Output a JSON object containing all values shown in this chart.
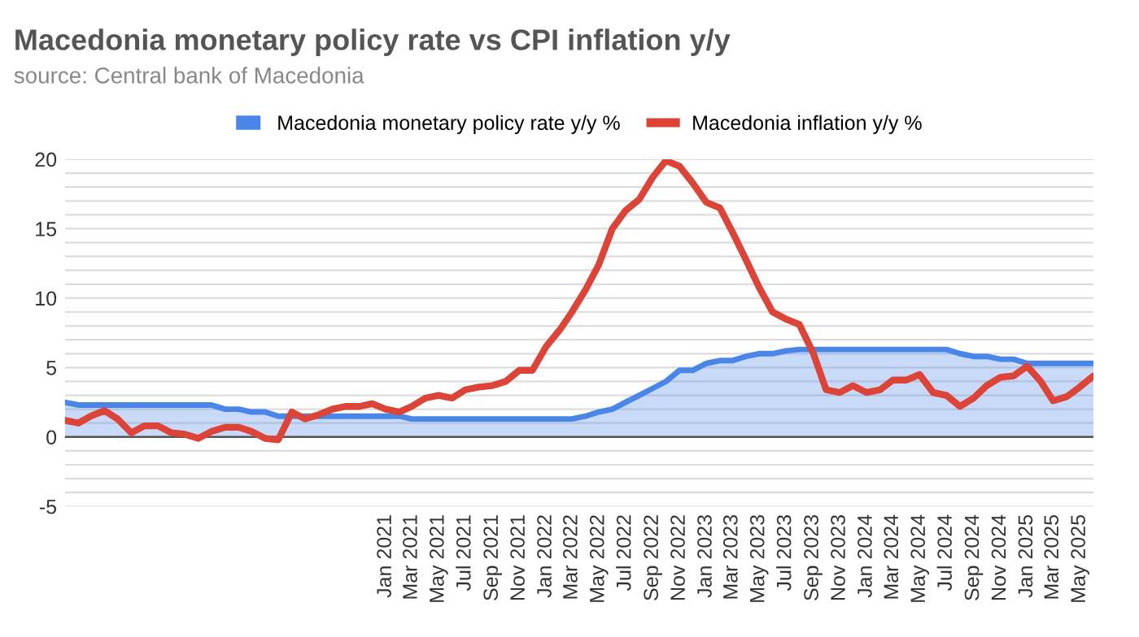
{
  "chart_data": {
    "type": "line",
    "title": "Macedonia monetary policy rate vs CPI inflation y/y",
    "subtitle": "source: Central bank of Macedonia",
    "x": [
      "2019-01",
      "2019-02",
      "2019-03",
      "2019-04",
      "2019-05",
      "2019-06",
      "2019-07",
      "2019-08",
      "2019-09",
      "2019-10",
      "2019-11",
      "2019-12",
      "2020-01",
      "2020-02",
      "2020-03",
      "2020-04",
      "2020-05",
      "2020-06",
      "2020-07",
      "2020-08",
      "2020-09",
      "2020-10",
      "2020-11",
      "2020-12",
      "2021-01",
      "2021-02",
      "2021-03",
      "2021-04",
      "2021-05",
      "2021-06",
      "2021-07",
      "2021-08",
      "2021-09",
      "2021-10",
      "2021-11",
      "2021-12",
      "2022-01",
      "2022-02",
      "2022-03",
      "2022-04",
      "2022-05",
      "2022-06",
      "2022-07",
      "2022-08",
      "2022-09",
      "2022-10",
      "2022-11",
      "2022-12",
      "2023-01",
      "2023-02",
      "2023-03",
      "2023-04",
      "2023-05",
      "2023-06",
      "2023-07",
      "2023-08",
      "2023-09",
      "2023-10",
      "2023-11",
      "2023-12",
      "2024-01",
      "2024-02",
      "2024-03",
      "2024-04",
      "2024-05",
      "2024-06",
      "2024-07",
      "2024-08",
      "2024-09",
      "2024-10",
      "2024-11",
      "2024-12",
      "2025-01",
      "2025-02",
      "2025-03",
      "2025-04",
      "2025-05",
      "2025-06"
    ],
    "series": [
      {
        "name": "Macedonia monetary policy rate y/y %",
        "type": "area",
        "color": "#4a86e8",
        "values": [
          2.5,
          2.3,
          2.3,
          2.3,
          2.3,
          2.3,
          2.3,
          2.3,
          2.3,
          2.3,
          2.3,
          2.3,
          2.0,
          2.0,
          1.8,
          1.8,
          1.5,
          1.5,
          1.5,
          1.5,
          1.5,
          1.5,
          1.5,
          1.5,
          1.5,
          1.5,
          1.3,
          1.3,
          1.3,
          1.3,
          1.3,
          1.3,
          1.3,
          1.3,
          1.3,
          1.3,
          1.3,
          1.3,
          1.3,
          1.5,
          1.8,
          2.0,
          2.5,
          3.0,
          3.5,
          4.0,
          4.8,
          4.8,
          5.3,
          5.5,
          5.5,
          5.8,
          6.0,
          6.0,
          6.2,
          6.3,
          6.3,
          6.3,
          6.3,
          6.3,
          6.3,
          6.3,
          6.3,
          6.3,
          6.3,
          6.3,
          6.3,
          6.0,
          5.8,
          5.8,
          5.6,
          5.6,
          5.3,
          5.3,
          5.3,
          5.3,
          5.3,
          5.3
        ]
      },
      {
        "name": "Macedonia inflation y/y %",
        "color": "#db4437",
        "values": [
          1.2,
          1.0,
          1.5,
          1.9,
          1.3,
          0.3,
          0.8,
          0.8,
          0.3,
          0.2,
          -0.1,
          0.4,
          0.7,
          0.7,
          0.4,
          -0.1,
          -0.2,
          1.8,
          1.3,
          1.6,
          2.0,
          2.2,
          2.2,
          2.4,
          2.0,
          1.8,
          2.2,
          2.8,
          3.0,
          2.8,
          3.4,
          3.6,
          3.7,
          4.0,
          4.8,
          4.8,
          6.5,
          7.7,
          9.0,
          10.6,
          12.4,
          15.0,
          16.3,
          17.1,
          18.7,
          19.9,
          19.5,
          18.3,
          16.9,
          16.5,
          14.8,
          12.8,
          10.8,
          9.0,
          8.5,
          8.1,
          6.1,
          3.4,
          3.2,
          3.7,
          3.2,
          3.4,
          4.1,
          4.1,
          4.5,
          3.2,
          3.0,
          2.2,
          2.8,
          3.7,
          4.3,
          4.4,
          5.1,
          4.0,
          2.6,
          2.9,
          3.6,
          4.4
        ]
      }
    ],
    "xlim": [
      "2019-01",
      "2025-06"
    ],
    "xticks": [
      {
        "value": "2021-01",
        "label": "Jan 2021"
      },
      {
        "value": "2021-03",
        "label": "Mar 2021"
      },
      {
        "value": "2021-05",
        "label": "May 2021"
      },
      {
        "value": "2021-07",
        "label": "Jul 2021"
      },
      {
        "value": "2021-09",
        "label": "Sep 2021"
      },
      {
        "value": "2021-11",
        "label": "Nov 2021"
      },
      {
        "value": "2022-01",
        "label": "Jan 2022"
      },
      {
        "value": "2022-03",
        "label": "Mar 2022"
      },
      {
        "value": "2022-05",
        "label": "May 2022"
      },
      {
        "value": "2022-07",
        "label": "Jul 2022"
      },
      {
        "value": "2022-09",
        "label": "Sep 2022"
      },
      {
        "value": "2022-11",
        "label": "Nov 2022"
      },
      {
        "value": "2023-01",
        "label": "Jan 2023"
      },
      {
        "value": "2023-03",
        "label": "Mar 2023"
      },
      {
        "value": "2023-05",
        "label": "May 2023"
      },
      {
        "value": "2023-07",
        "label": "Jul 2023"
      },
      {
        "value": "2023-09",
        "label": "Sep 2023"
      },
      {
        "value": "2023-11",
        "label": "Nov 2023"
      },
      {
        "value": "2024-01",
        "label": "Jan 2024"
      },
      {
        "value": "2024-03",
        "label": "Mar 2024"
      },
      {
        "value": "2024-05",
        "label": "May 2024"
      },
      {
        "value": "2024-07",
        "label": "Jul 2024"
      },
      {
        "value": "2024-09",
        "label": "Sep 2024"
      },
      {
        "value": "2024-11",
        "label": "Nov 2024"
      },
      {
        "value": "2025-01",
        "label": "Jan 2025"
      },
      {
        "value": "2025-03",
        "label": "Mar 2025"
      },
      {
        "value": "2025-05",
        "label": "May 2025"
      }
    ],
    "ylim": [
      -5,
      20
    ],
    "yticks": [
      -5,
      {
        "value": -4,
        "label": null
      },
      {
        "value": -3,
        "label": null
      },
      {
        "value": -2,
        "label": null
      },
      {
        "value": -1,
        "label": null
      },
      0,
      {
        "value": 1,
        "label": null
      },
      {
        "value": 2,
        "label": null
      },
      {
        "value": 3,
        "label": null
      },
      {
        "value": 4,
        "label": null
      },
      5,
      {
        "value": 6,
        "label": null
      },
      {
        "value": 7,
        "label": null
      },
      {
        "value": 8,
        "label": null
      },
      {
        "value": 9,
        "label": null
      },
      10,
      {
        "value": 11,
        "label": null
      },
      {
        "value": 12,
        "label": null
      },
      {
        "value": 13,
        "label": null
      },
      {
        "value": 14,
        "label": null
      },
      15,
      {
        "value": 16,
        "label": null
      },
      {
        "value": 17,
        "label": null
      },
      {
        "value": 18,
        "label": null
      },
      {
        "value": 19,
        "label": null
      },
      20
    ],
    "grid": "y",
    "legend": "top"
  }
}
